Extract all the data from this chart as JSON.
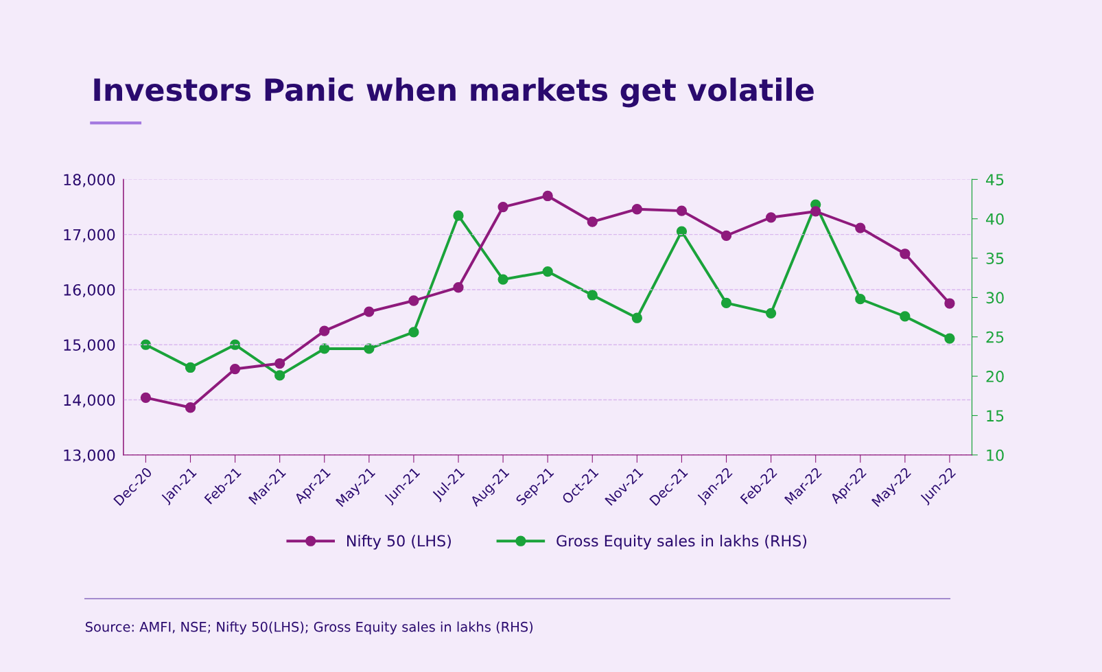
{
  "chart_data": {
    "type": "line",
    "title": "Investors Panic when markets get volatile",
    "categories": [
      "Dec-20",
      "Jan-21",
      "Feb-21",
      "Mar-21",
      "Apr-21",
      "May-21",
      "Jun-21",
      "Jul-21",
      "Aug-21",
      "Sep-21",
      "Oct-21",
      "Nov-21",
      "Dec-21",
      "Jan-22",
      "Feb-22",
      "Mar-22",
      "Apr-22",
      "May-22",
      "Jun-22"
    ],
    "series": [
      {
        "name": "Nifty 50 (LHS)",
        "color": "#8e1a7c",
        "values": [
          14040,
          13860,
          14560,
          14660,
          15250,
          15600,
          15800,
          16040,
          17500,
          17700,
          17230,
          17460,
          17430,
          16980,
          17310,
          17420,
          17120,
          16650,
          15750
        ]
      },
      {
        "name": "Gross Equity sales in lakhs (RHS)",
        "color": "#1aa33a",
        "axis": "y2",
        "values": [
          24.0,
          21.1,
          24.0,
          20.1,
          23.5,
          23.5,
          25.6,
          40.4,
          32.3,
          33.3,
          30.3,
          27.4,
          38.4,
          29.3,
          28.0,
          41.8,
          29.8,
          27.6,
          24.8
        ]
      }
    ],
    "ylim": [
      13000,
      18000
    ],
    "yticks": [
      {
        "value": 13000,
        "label": "13,000"
      },
      {
        "value": 14000,
        "label": "14,000"
      },
      {
        "value": 15000,
        "label": "15,000"
      },
      {
        "value": 16000,
        "label": "16,000"
      },
      {
        "value": 17000,
        "label": "17,000"
      },
      {
        "value": 18000,
        "label": "18,000"
      }
    ],
    "y2lim": [
      10,
      45
    ],
    "y2ticks": [
      10,
      15,
      20,
      25,
      30,
      35,
      40,
      45
    ],
    "grid": "y",
    "legend": "bottom",
    "marker": "circle",
    "line_style": "solid",
    "annotations": [
      "Source: AMFI, NSE; Nifty 50(LHS); Gross Equity sales in lakhs (RHS)"
    ]
  }
}
